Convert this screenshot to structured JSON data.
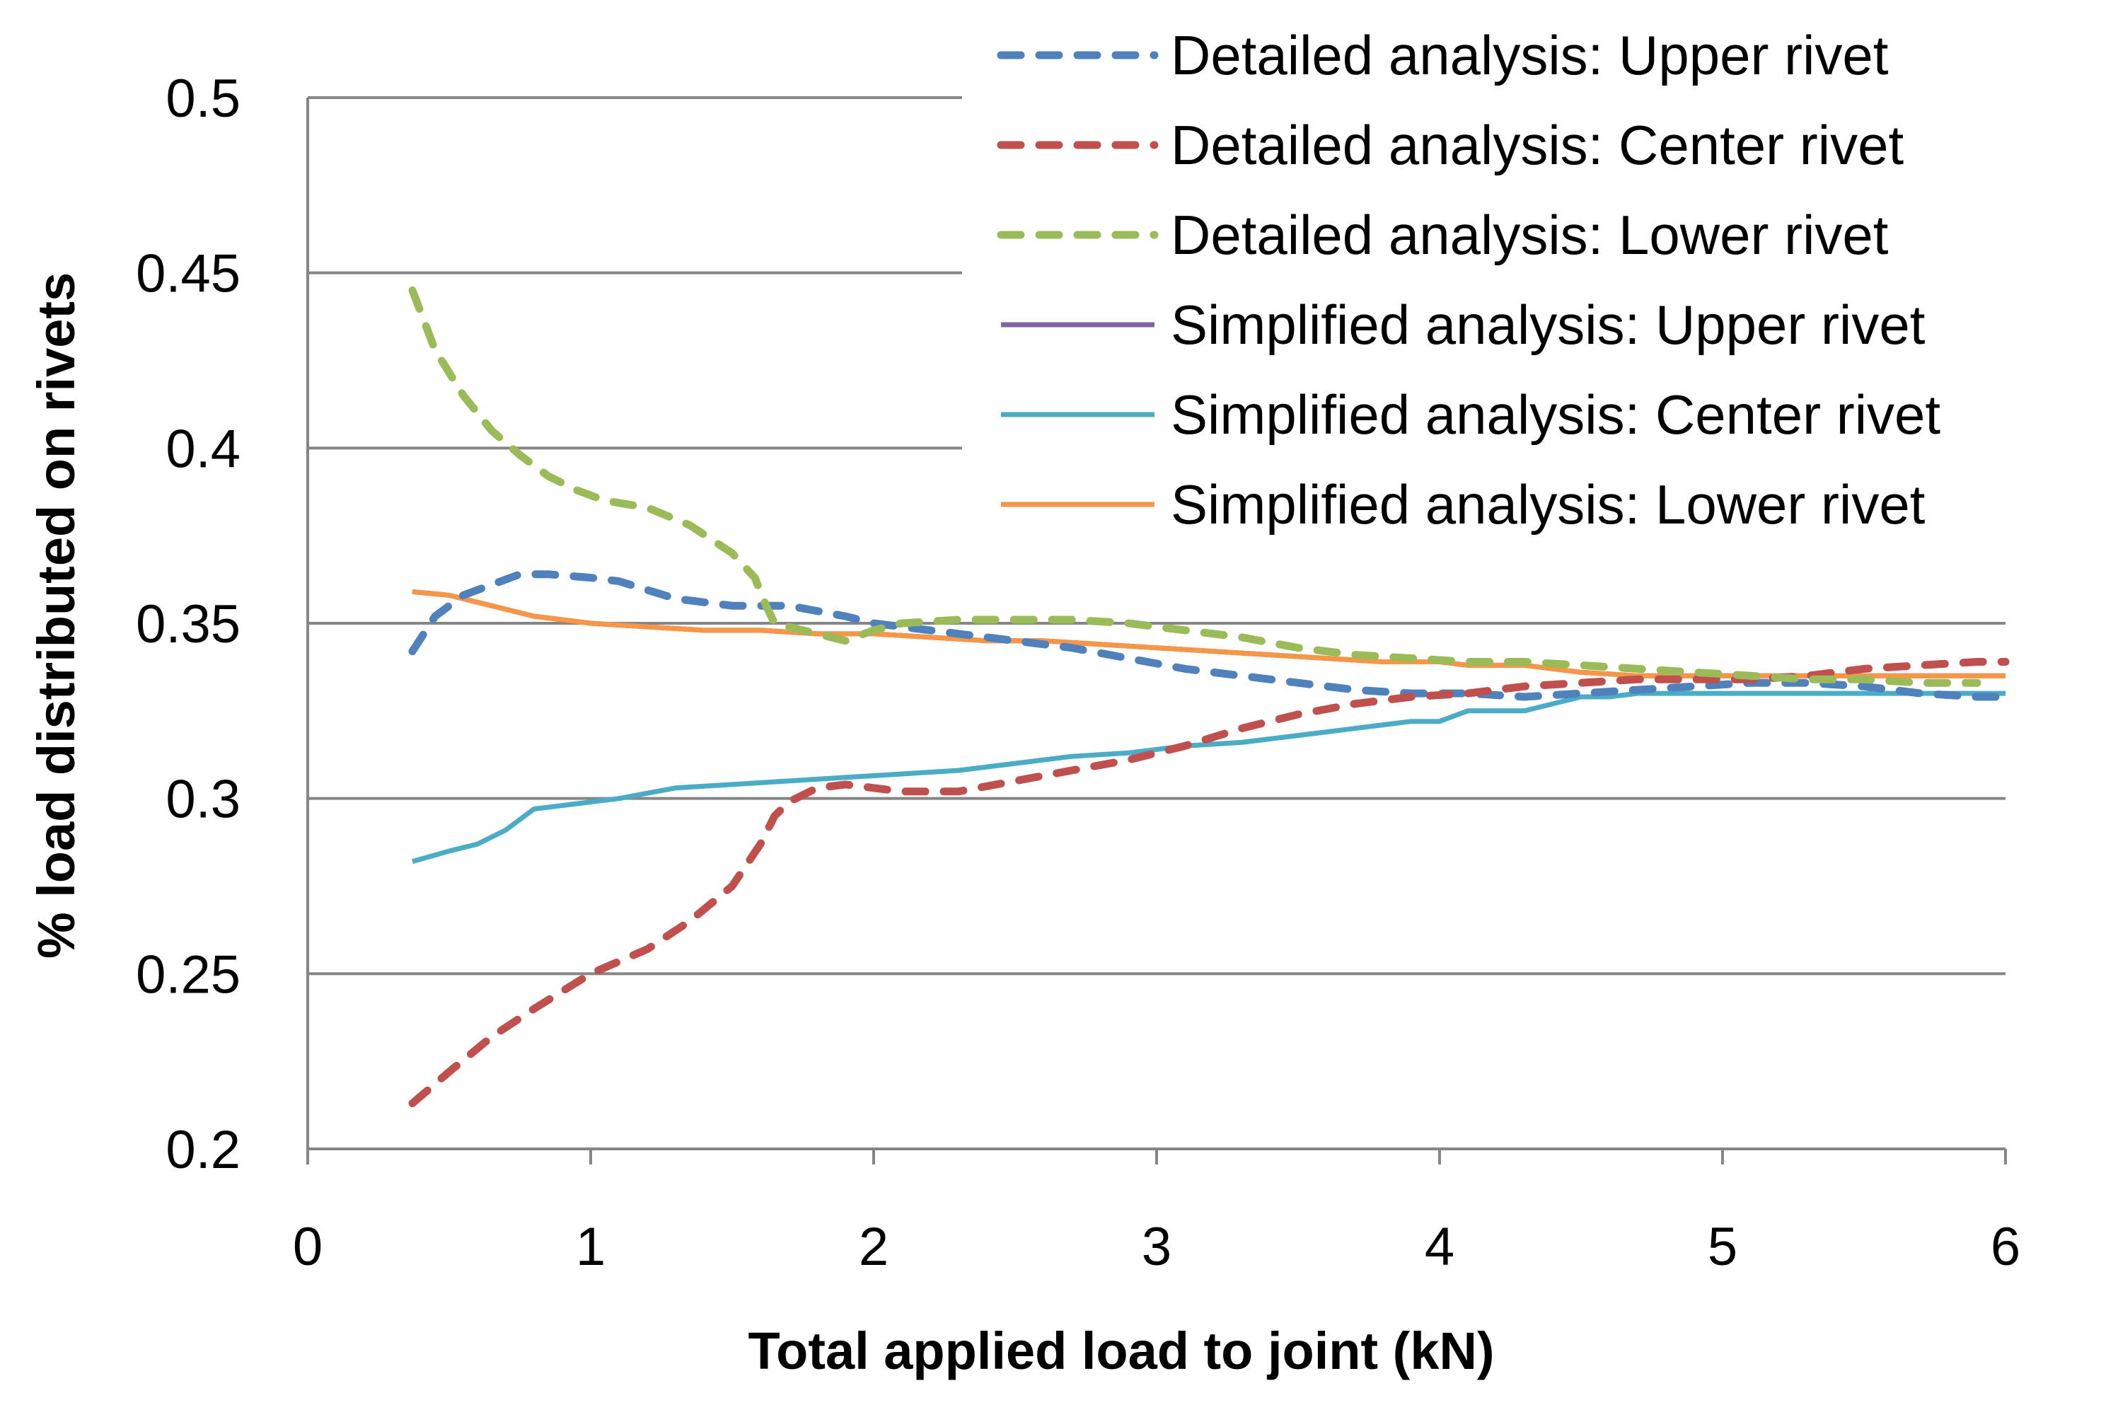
{
  "chart_data": {
    "type": "line",
    "title": "",
    "xlabel": "Total applied load to joint (kN)",
    "ylabel": "% load distributed on rivets",
    "xlim": [
      0,
      6
    ],
    "ylim": [
      0.2,
      0.5
    ],
    "x_ticks": [
      0,
      1,
      2,
      3,
      4,
      5,
      6
    ],
    "x_tick_labels": [
      "0",
      "1",
      "2",
      "3",
      "4",
      "5",
      "6"
    ],
    "y_ticks": [
      0.2,
      0.25,
      0.3,
      0.35,
      0.4,
      0.45,
      0.5
    ],
    "y_tick_labels": [
      "0.2",
      "0.25",
      "0.3",
      "0.35",
      "0.4",
      "0.45",
      "0.5"
    ],
    "grid": true,
    "legend_position": "top-right",
    "series": [
      {
        "name": "Detailed analysis: Upper rivet",
        "style": "dashed",
        "color": "#4f81bd",
        "x": [
          0.37,
          0.45,
          0.55,
          0.65,
          0.75,
          0.85,
          1.0,
          1.1,
          1.3,
          1.5,
          1.7,
          1.9,
          2.0,
          2.1,
          2.3,
          2.5,
          2.7,
          2.9,
          3.1,
          3.3,
          3.5,
          3.7,
          3.9,
          4.1,
          4.3,
          4.5,
          4.7,
          4.9,
          5.1,
          5.3,
          5.5,
          5.7,
          5.9,
          6.0
        ],
        "y": [
          0.342,
          0.352,
          0.358,
          0.361,
          0.364,
          0.364,
          0.363,
          0.362,
          0.357,
          0.355,
          0.355,
          0.352,
          0.35,
          0.349,
          0.347,
          0.345,
          0.343,
          0.34,
          0.337,
          0.335,
          0.333,
          0.331,
          0.33,
          0.33,
          0.329,
          0.33,
          0.331,
          0.332,
          0.333,
          0.333,
          0.332,
          0.33,
          0.329,
          0.329
        ]
      },
      {
        "name": "Detailed analysis: Center rivet",
        "style": "dashed",
        "color": "#c0504d",
        "x": [
          0.37,
          0.5,
          0.65,
          0.8,
          0.9,
          1.0,
          1.2,
          1.35,
          1.5,
          1.6,
          1.65,
          1.7,
          1.8,
          1.9,
          2.0,
          2.1,
          2.3,
          2.5,
          2.7,
          2.9,
          3.1,
          3.3,
          3.5,
          3.7,
          3.9,
          4.1,
          4.3,
          4.5,
          4.7,
          4.9,
          5.1,
          5.3,
          5.5,
          5.7,
          5.9,
          6.0
        ],
        "y": [
          0.213,
          0.222,
          0.232,
          0.24,
          0.245,
          0.25,
          0.257,
          0.265,
          0.275,
          0.287,
          0.295,
          0.299,
          0.303,
          0.304,
          0.303,
          0.302,
          0.302,
          0.305,
          0.308,
          0.311,
          0.315,
          0.32,
          0.324,
          0.327,
          0.329,
          0.33,
          0.332,
          0.333,
          0.334,
          0.334,
          0.334,
          0.335,
          0.337,
          0.338,
          0.339,
          0.339
        ]
      },
      {
        "name": "Detailed analysis: Lower rivet",
        "style": "dashed",
        "color": "#9bbb59",
        "x": [
          0.37,
          0.45,
          0.55,
          0.65,
          0.75,
          0.85,
          0.95,
          1.05,
          1.2,
          1.35,
          1.5,
          1.58,
          1.62,
          1.65,
          1.7,
          1.8,
          1.9,
          2.0,
          2.1,
          2.3,
          2.5,
          2.7,
          2.9,
          3.1,
          3.3,
          3.5,
          3.7,
          3.9,
          4.1,
          4.3,
          4.5,
          4.7,
          4.9,
          5.1,
          5.3,
          5.5,
          5.7,
          5.9
        ],
        "y": [
          0.445,
          0.428,
          0.415,
          0.405,
          0.398,
          0.392,
          0.388,
          0.385,
          0.383,
          0.378,
          0.37,
          0.363,
          0.355,
          0.35,
          0.349,
          0.347,
          0.345,
          0.348,
          0.35,
          0.351,
          0.351,
          0.351,
          0.35,
          0.348,
          0.346,
          0.343,
          0.341,
          0.34,
          0.339,
          0.339,
          0.338,
          0.337,
          0.336,
          0.335,
          0.334,
          0.334,
          0.333,
          0.333
        ]
      },
      {
        "name": "Simplified analysis: Upper rivet",
        "style": "solid",
        "color": "#8064a2",
        "x": [
          0.37,
          0.5,
          0.6,
          0.7,
          0.8,
          0.9,
          1.0,
          1.2,
          1.4,
          1.6,
          1.8,
          2.0,
          2.2,
          2.4,
          2.6,
          2.8,
          3.0,
          3.2,
          3.4,
          3.6,
          3.8,
          4.0,
          4.1,
          4.3,
          4.5,
          4.7,
          4.9,
          5.1,
          5.3,
          5.5,
          5.7,
          5.9,
          6.0
        ],
        "y": [
          0.359,
          0.358,
          0.356,
          0.354,
          0.352,
          0.351,
          0.35,
          0.349,
          0.348,
          0.348,
          0.347,
          0.347,
          0.346,
          0.345,
          0.345,
          0.344,
          0.343,
          0.342,
          0.341,
          0.34,
          0.339,
          0.339,
          0.338,
          0.338,
          0.336,
          0.335,
          0.335,
          0.335,
          0.335,
          0.335,
          0.335,
          0.335,
          0.335
        ]
      },
      {
        "name": "Simplified analysis: Center rivet",
        "style": "solid",
        "color": "#4bacc6",
        "x": [
          0.37,
          0.5,
          0.6,
          0.7,
          0.8,
          1.0,
          1.1,
          1.3,
          1.5,
          1.7,
          1.9,
          2.1,
          2.3,
          2.5,
          2.7,
          2.9,
          3.1,
          3.3,
          3.4,
          3.6,
          3.8,
          3.9,
          4.0,
          4.1,
          4.3,
          4.4,
          4.5,
          4.6,
          4.7,
          4.9,
          5.1,
          5.3,
          5.5,
          5.7,
          5.9,
          6.0
        ],
        "y": [
          0.282,
          0.285,
          0.287,
          0.291,
          0.297,
          0.299,
          0.3,
          0.303,
          0.304,
          0.305,
          0.306,
          0.307,
          0.308,
          0.31,
          0.312,
          0.313,
          0.315,
          0.316,
          0.317,
          0.319,
          0.321,
          0.322,
          0.322,
          0.325,
          0.325,
          0.327,
          0.329,
          0.329,
          0.33,
          0.33,
          0.33,
          0.33,
          0.33,
          0.33,
          0.33,
          0.33
        ]
      },
      {
        "name": "Simplified analysis: Lower rivet",
        "style": "solid",
        "color": "#f79646",
        "x": [
          0.37,
          0.5,
          0.6,
          0.7,
          0.8,
          0.9,
          1.0,
          1.2,
          1.4,
          1.6,
          1.8,
          2.0,
          2.2,
          2.4,
          2.6,
          2.8,
          3.0,
          3.2,
          3.4,
          3.6,
          3.8,
          4.0,
          4.1,
          4.3,
          4.5,
          4.7,
          4.9,
          5.1,
          5.3,
          5.5,
          5.7,
          5.9,
          6.0
        ],
        "y": [
          0.359,
          0.358,
          0.356,
          0.354,
          0.352,
          0.351,
          0.35,
          0.349,
          0.348,
          0.348,
          0.347,
          0.347,
          0.346,
          0.345,
          0.345,
          0.344,
          0.343,
          0.342,
          0.341,
          0.34,
          0.339,
          0.339,
          0.338,
          0.338,
          0.336,
          0.335,
          0.335,
          0.335,
          0.335,
          0.335,
          0.335,
          0.335,
          0.335
        ]
      }
    ]
  }
}
